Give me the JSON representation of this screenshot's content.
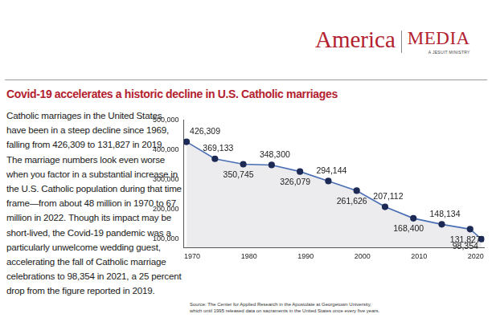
{
  "header": {
    "brand": "America",
    "section": "MEDIA",
    "tagline": "A JESUIT MINISTRY"
  },
  "text": "Catholic marriages in the United States have been in a steep decline since 1969, falling from 426,309 to 131,827 in 2019. The marriage numbers look even worse when you factor in a substantial increase in the U.S. Catholic population during that time frame—from about 48 million in 1970 to 67 million in 2022. Though its impact may be short-lived, the Covid-19 pandemic was a particularly unwelcome wedding guest, accelerating the fall of Catholic marriage celebrations to 98,354 in 2021, a 25 percent drop from the figure reported in 2019.",
  "source": [
    "Source: The Center for Applied Research in the Apostolate at Georgetown University,",
    "which until 1995 released data on sacraments in the United States once every five years."
  ],
  "chart_data": {
    "type": "line",
    "title": "Covid-19 accelerates a historic decline in U.S. Catholic marriages",
    "x": [
      1969,
      1974,
      1979,
      1984,
      1989,
      1994,
      1999,
      2004,
      2009,
      2014,
      2019,
      2021
    ],
    "values": [
      426309,
      369133,
      350745,
      348300,
      326079,
      294144,
      261626,
      207112,
      168400,
      148134,
      131827,
      98354
    ],
    "value_labels": [
      "426,309",
      "369,133",
      "350,745",
      "348,300",
      "326,079",
      "294,144",
      "261,626",
      "207,112",
      "168,400",
      "148,134",
      "131,827",
      "98,354"
    ],
    "color": "#4a6fb5",
    "marker": "circle",
    "xlim": [
      1968.5,
      2021.5
    ],
    "xticks": [
      1970,
      1980,
      1990,
      2000,
      2010,
      2020
    ],
    "ylim": [
      70000,
      500000
    ],
    "yticks": [
      {
        "value": 100000,
        "label": "100,000"
      },
      {
        "value": 200000,
        "label": "200,000"
      },
      {
        "value": 300000,
        "label": "300,000"
      },
      {
        "value": 400000,
        "label": "400,000"
      },
      {
        "value": 500000,
        "label": "500,000"
      }
    ],
    "grid": false,
    "data_labels": true
  }
}
